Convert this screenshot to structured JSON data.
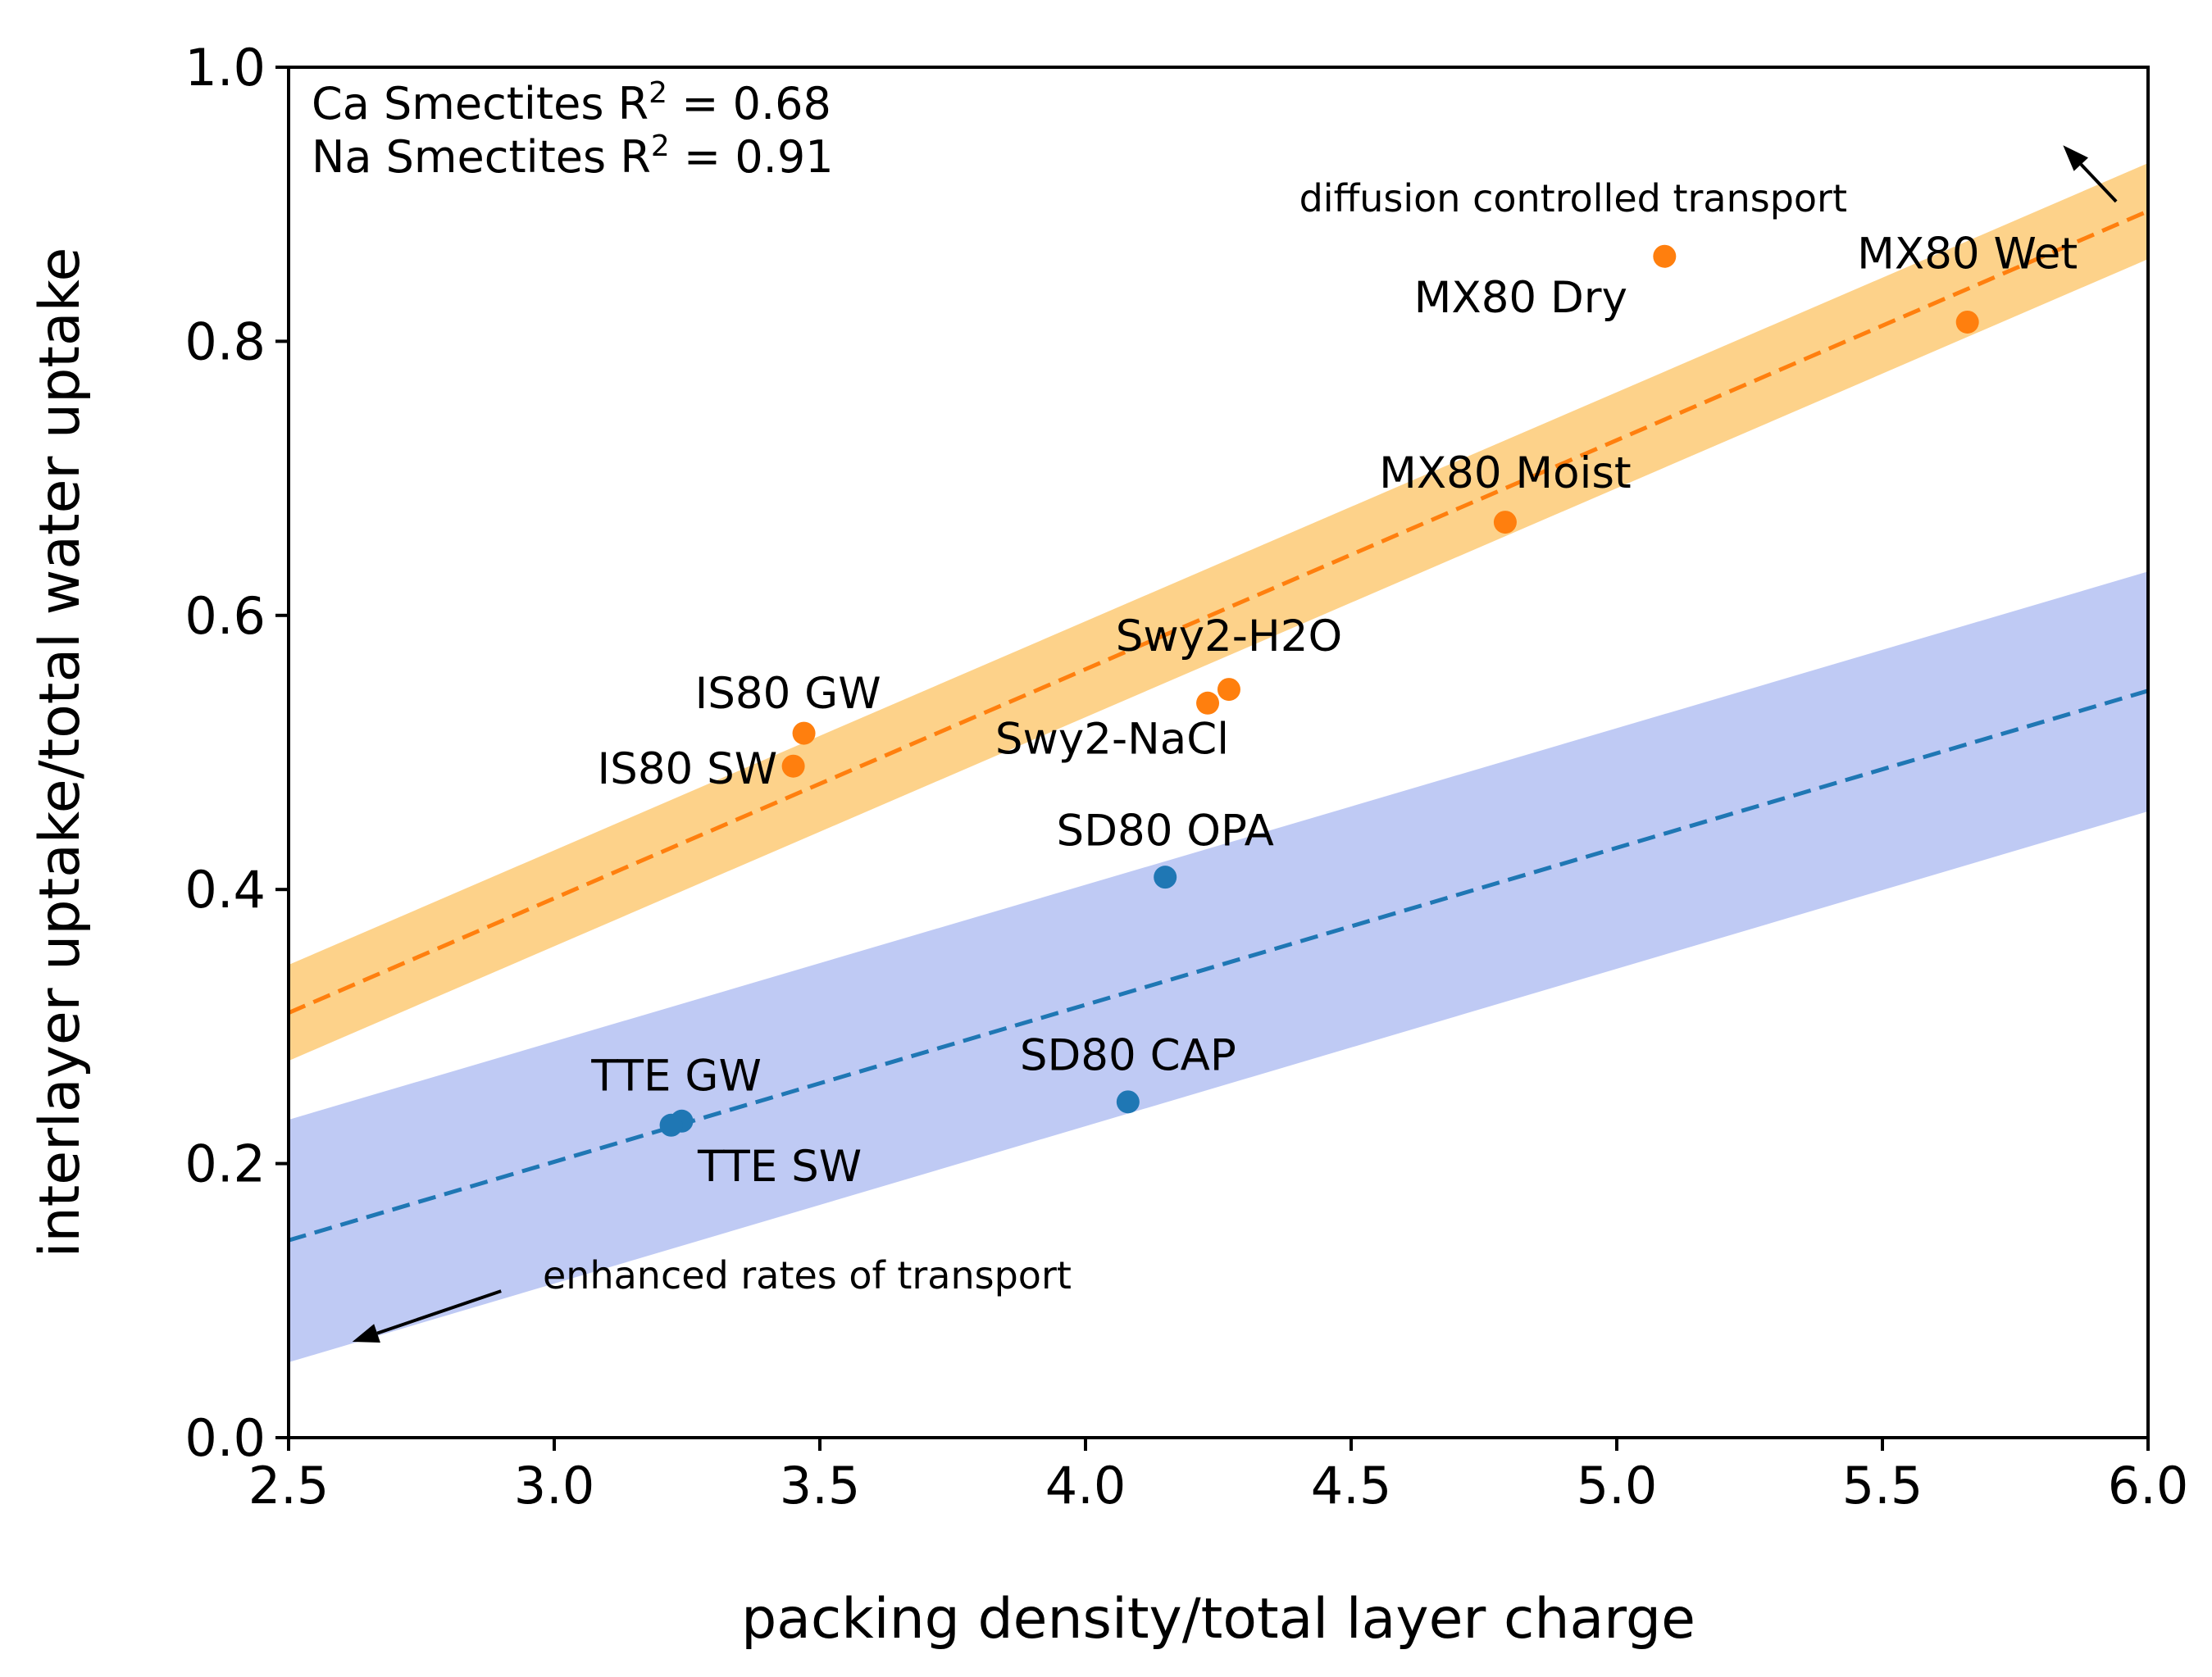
{
  "chart_data": {
    "type": "scatter",
    "xlabel": "packing density/total layer charge",
    "ylabel": "interlayer uptake/total water uptake",
    "xlim": [
      2.5,
      6.0
    ],
    "ylim": [
      0.0,
      1.0
    ],
    "x_ticks": [
      "2.5",
      "3.0",
      "3.5",
      "4.0",
      "4.5",
      "5.0",
      "5.5",
      "6.0"
    ],
    "y_ticks": [
      "0.0",
      "0.2",
      "0.4",
      "0.6",
      "0.8",
      "1.0"
    ],
    "grid": false,
    "stats": [
      {
        "name": "Ca Smectites",
        "r2_prefix": "Ca Smectites R",
        "sup": "2",
        "r2_suffix": " = 0.68",
        "value": 0.68
      },
      {
        "name": "Na Smectites",
        "r2_prefix": "Na Smectites R",
        "sup": "2",
        "r2_suffix": " = 0.91",
        "value": 0.91
      }
    ],
    "series": [
      {
        "name": "orange",
        "color": "#ff7f0e",
        "band_color": "#fdd28a",
        "fit": {
          "x": [
            2.5,
            6.0
          ],
          "y": [
            0.31,
            0.895
          ]
        },
        "band": {
          "upper": [
            0.345,
            0.93
          ],
          "lower": [
            0.275,
            0.86
          ]
        },
        "points": [
          {
            "label": "MX80 Dry",
            "x": 5.09,
            "y": 0.862,
            "anchor": "end",
            "dx": -0.07,
            "dy": -0.03
          },
          {
            "label": "MX80 Wet",
            "x": 5.66,
            "y": 0.814,
            "anchor": "middle",
            "dx": 0.0,
            "dy": 0.05
          },
          {
            "label": "MX80 Moist",
            "x": 4.79,
            "y": 0.668,
            "anchor": "middle",
            "dx": 0.0,
            "dy": 0.036
          },
          {
            "label": "Swy2-H2O",
            "x": 4.27,
            "y": 0.546,
            "anchor": "middle",
            "dx": 0.0,
            "dy": 0.039
          },
          {
            "label": "Swy2-NaCl",
            "x": 4.23,
            "y": 0.536,
            "anchor": "end",
            "dx": 0.04,
            "dy": -0.026
          },
          {
            "label": "IS80 GW",
            "x": 3.47,
            "y": 0.514,
            "anchor": "middle",
            "dx": -0.03,
            "dy": 0.029
          },
          {
            "label": "IS80 SW",
            "x": 3.45,
            "y": 0.49,
            "anchor": "end",
            "dx": -0.03,
            "dy": -0.002
          }
        ]
      },
      {
        "name": "blue",
        "color": "#1f77b4",
        "band_color": "#bfcaf4",
        "fit": {
          "x": [
            2.5,
            6.0
          ],
          "y": [
            0.144,
            0.545
          ]
        },
        "band": {
          "upper": [
            0.232,
            0.632
          ],
          "lower": [
            0.055,
            0.457
          ]
        },
        "points": [
          {
            "label": "SD80 OPA",
            "x": 4.15,
            "y": 0.409,
            "anchor": "middle",
            "dx": 0.0,
            "dy": 0.034
          },
          {
            "label": "SD80 CAP",
            "x": 4.08,
            "y": 0.245,
            "anchor": "middle",
            "dx": 0.0,
            "dy": 0.034
          },
          {
            "label": "TTE GW",
            "x": 3.24,
            "y": 0.231,
            "anchor": "middle",
            "dx": -0.01,
            "dy": 0.033
          },
          {
            "label": "TTE SW",
            "x": 3.22,
            "y": 0.228,
            "anchor": "start",
            "dx": 0.05,
            "dy": -0.03
          }
        ]
      }
    ],
    "annotations": [
      {
        "text": "diffusion controlled transport",
        "position": "upper-right",
        "arrow_from": [
          5.94,
          0.902
        ],
        "arrow_to": [
          5.84,
          0.943
        ]
      },
      {
        "text": "enhanced rates of transport",
        "position": "lower-left",
        "arrow_from": [
          2.9,
          0.107
        ],
        "arrow_to": [
          2.62,
          0.07
        ]
      }
    ]
  }
}
